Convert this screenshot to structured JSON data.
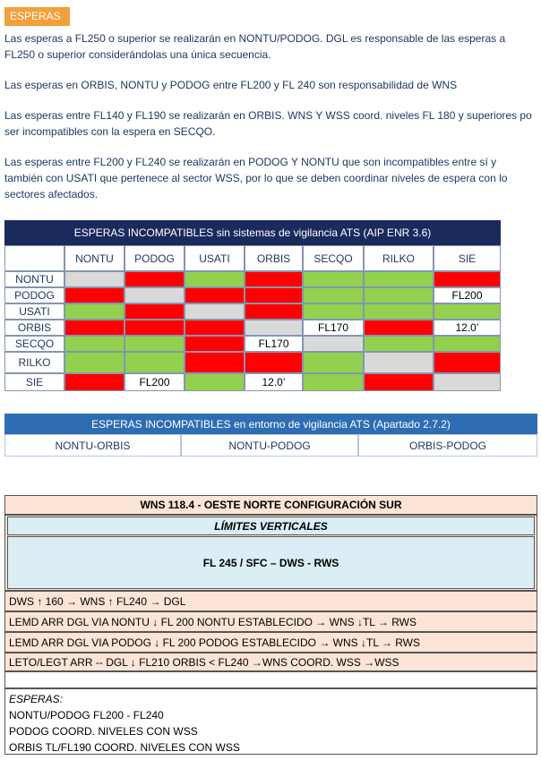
{
  "header": {
    "title": "ESPERAS"
  },
  "paragraphs": [
    [
      "Las esperas a FL250 o superior se realizarán en NONTU/PODOG. DGL es responsable de las esperas a",
      "FL250 o superior considerándolas una única secuencia."
    ],
    [
      "Las esperas en ORBIS, NONTU y PODOG entre FL200 y FL 240 son responsabilidad de WNS"
    ],
    [
      "Las esperas entre FL140 y FL190 se realizarán en ORBIS. WNS Y WSS coord. niveles FL 180 y superiores po",
      "ser incompatibles con la espera en SECQO."
    ],
    [
      "Las esperas entre FL200 y FL240 se realizarán en PODOG Y NONTU que son incompatibles entre sí y",
      "también con USATI que pertenece al sector WSS, por lo que se deben coordinar niveles de espera con lo",
      "sectores afectados."
    ]
  ],
  "table1": {
    "title": "ESPERAS INCOMPATIBLES sin sistemas de vigilancia ATS (AIP ENR 3.6)",
    "columns": [
      "NONTU",
      "PODOG",
      "USATI",
      "ORBIS",
      "SECQO",
      "RILKO",
      "SIE"
    ],
    "rows": [
      {
        "label": "NONTU",
        "cells": [
          {
            "color": "#d9d9d9"
          },
          {
            "color": "#ff0000"
          },
          {
            "color": "#92d050"
          },
          {
            "color": "#ff0000"
          },
          {
            "color": "#92d050"
          },
          {
            "color": "#92d050"
          },
          {
            "color": "#ff0000"
          }
        ]
      },
      {
        "label": "PODOG",
        "cells": [
          {
            "color": "#ff0000"
          },
          {
            "color": "#d9d9d9"
          },
          {
            "color": "#ff0000"
          },
          {
            "color": "#ff0000"
          },
          {
            "color": "#92d050"
          },
          {
            "color": "#92d050"
          },
          {
            "color": "#ffffff",
            "text": "FL200"
          }
        ]
      },
      {
        "label": "USATI",
        "cells": [
          {
            "color": "#92d050"
          },
          {
            "color": "#ff0000"
          },
          {
            "color": "#d9d9d9"
          },
          {
            "color": "#ff0000"
          },
          {
            "color": "#92d050"
          },
          {
            "color": "#92d050"
          },
          {
            "color": "#92d050"
          }
        ]
      },
      {
        "label": "ORBIS",
        "cells": [
          {
            "color": "#ff0000"
          },
          {
            "color": "#ff0000"
          },
          {
            "color": "#ff0000"
          },
          {
            "color": "#d9d9d9"
          },
          {
            "color": "#ffffff",
            "text": "FL170"
          },
          {
            "color": "#ff0000"
          },
          {
            "color": "#ffffff",
            "text": "12.0’"
          }
        ]
      },
      {
        "label": "SECQO",
        "cells": [
          {
            "color": "#92d050"
          },
          {
            "color": "#92d050"
          },
          {
            "color": "#ff0000"
          },
          {
            "color": "#ffffff",
            "text": "FL170"
          },
          {
            "color": "#d9d9d9"
          },
          {
            "color": "#92d050"
          },
          {
            "color": "#92d050"
          }
        ]
      },
      {
        "label": "RILKO",
        "cells": [
          {
            "color": "#92d050"
          },
          {
            "color": "#92d050"
          },
          {
            "color": "#ff0000"
          },
          {
            "color": "#ff0000"
          },
          {
            "color": "#92d050"
          },
          {
            "color": "#d9d9d9"
          },
          {
            "color": "#ff0000"
          }
        ]
      },
      {
        "label": "SIE",
        "cells": [
          {
            "color": "#ff0000"
          },
          {
            "color": "#ffffff",
            "text": "FL200"
          },
          {
            "color": "#92d050"
          },
          {
            "color": "#ffffff",
            "text": "12.0’"
          },
          {
            "color": "#92d050"
          },
          {
            "color": "#ff0000"
          },
          {
            "color": "#d9d9d9"
          }
        ]
      }
    ]
  },
  "table2": {
    "title": "ESPERAS INCOMPATIBLES en entorno de vigilancia ATS (Apartado 2.7.2)",
    "cells": [
      "NONTU-ORBIS",
      "NONTU-PODOG",
      "ORBIS-PODOG"
    ]
  },
  "table3": {
    "title": "WNS 118.4 - OESTE NORTE CONFIGURACIÓN SUR",
    "subtitle": "LÍMITES VERTICALES",
    "limits": "FL 245 / SFC – DWS - RWS",
    "routes": [
      "DWS ↑ 160 → WNS ↑ FL240 → DGL",
      "LEMD ARR DGL VIA NONTU ↓ FL 200 NONTU ESTABLECIDO → WNS ↓TL → RWS",
      "LEMD ARR DGL VIA PODOG ↓ FL 200 PODOG ESTABLECIDO → WNS ↓TL → RWS",
      "LETO/LEGT ARR -- DGL ↓ FL210 ORBIS < FL240 →WNS COORD. WSS →WSS"
    ],
    "holds": {
      "title": "ESPERAS:",
      "lines": [
        "NONTU/PODOG FL200 - FL240",
        "PODOG COORD. NIVELES CON WSS",
        "ORBIS TL/FL190 COORD. NIVELES CON WSS"
      ]
    }
  }
}
